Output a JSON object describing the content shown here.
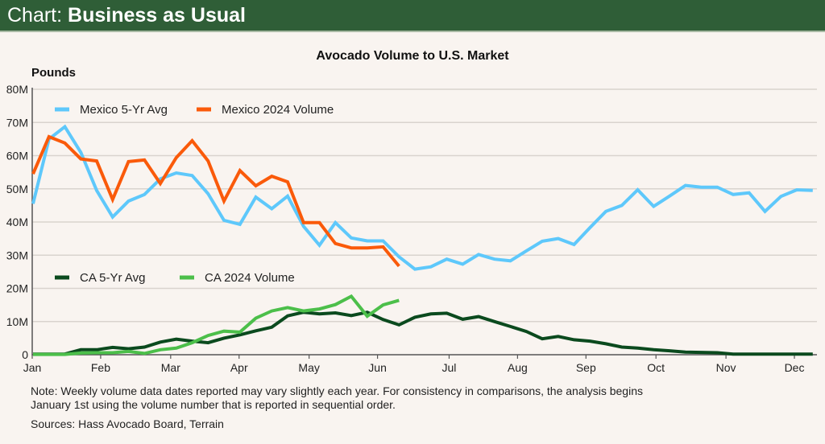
{
  "header": {
    "prefix": "Chart:",
    "title": "Business as Usual"
  },
  "note": "Note: Weekly volume data dates reported may vary slightly each year. For consistency in comparisons, the analysis begins January 1st using the volume number that is reported in sequential order.",
  "source": "Sources: Hass Avocado Board, Terrain",
  "colors": {
    "header_bg": "#2f5e37",
    "mexico_avg": "#5ec8fb",
    "mexico_2024": "#fa5a0a",
    "ca_avg": "#0b4a1e",
    "ca_2024": "#4cbf4a"
  },
  "chart_data": {
    "type": "line",
    "title": "Avocado Volume to U.S. Market",
    "ylabel": "Pounds",
    "xlabel": "",
    "ylim": [
      0,
      80
    ],
    "yticks": [
      0,
      10,
      20,
      30,
      40,
      50,
      60,
      70,
      80
    ],
    "ytick_labels": [
      "0",
      "10M",
      "20M",
      "30M",
      "40M",
      "50M",
      "60M",
      "70M",
      "80M"
    ],
    "x_unit": "week of year (0 = Jan 1)",
    "xlim": [
      0,
      50.5
    ],
    "month_labels": [
      "Jan",
      "Feb",
      "Mar",
      "Apr",
      "May",
      "Jun",
      "Jul",
      "Aug",
      "Sep",
      "Oct",
      "Nov",
      "Dec"
    ],
    "month_positions": [
      0,
      4.3,
      8.7,
      13.0,
      17.4,
      21.7,
      26.2,
      30.5,
      34.8,
      39.2,
      43.6,
      47.9
    ],
    "grid": true,
    "legend_placement": "top-left (Mexico) and middle-left (CA)",
    "series": [
      {
        "name": "Mexico 5-Yr Avg",
        "color": "#5ec8fb",
        "values": [
          45.5,
          65,
          68.7,
          61,
          49.5,
          41.5,
          46.3,
          48.3,
          53,
          54.8,
          54,
          48.5,
          40.5,
          39.3,
          47.5,
          44,
          47.8,
          38.7,
          33,
          39.8,
          35.2,
          34.3,
          34.3,
          29.5,
          25.8,
          26.5,
          28.8,
          27.3,
          30.2,
          28.8,
          28.3,
          31.3,
          34.2,
          35,
          33.2,
          38.3,
          43.2,
          45,
          49.7,
          44.7,
          47.8,
          51,
          50.5,
          50.5,
          48.3,
          48.8,
          43.2,
          47.7,
          49.7,
          49.5
        ]
      },
      {
        "name": "Mexico 2024 Volume",
        "color": "#fa5a0a",
        "values": [
          54.5,
          65.7,
          63.8,
          59,
          58.4,
          46.8,
          58.2,
          58.7,
          51.6,
          59.4,
          64.5,
          58.4,
          46.3,
          55.5,
          50.9,
          53.8,
          52.1,
          39.8,
          39.8,
          33.5,
          32.2,
          32.2,
          32.5,
          26.7
        ]
      },
      {
        "name": "CA 5-Yr Avg",
        "color": "#0b4a1e",
        "values": [
          0.2,
          0.2,
          0.2,
          1.5,
          1.5,
          2.2,
          1.8,
          2.3,
          3.8,
          4.7,
          4.1,
          3.6,
          5,
          6,
          7.2,
          8.3,
          11.7,
          12.8,
          12.3,
          12.6,
          11.8,
          12.8,
          10.6,
          9,
          11.3,
          12.3,
          12.5,
          10.7,
          11.5,
          10,
          8.5,
          7,
          4.8,
          5.5,
          4.5,
          4.1,
          3.3,
          2.3,
          2,
          1.5,
          1.2,
          0.8,
          0.7,
          0.6,
          0.2,
          0.2,
          0.2,
          0.2,
          0.2,
          0.2
        ]
      },
      {
        "name": "CA 2024 Volume",
        "color": "#4cbf4a",
        "values": [
          0.1,
          0.1,
          0.1,
          0.5,
          0.6,
          0.6,
          1,
          0.4,
          1.5,
          2,
          3.6,
          5.8,
          7.1,
          6.8,
          11,
          13.2,
          14.2,
          13.2,
          13.8,
          15.1,
          17.6,
          11.6,
          15,
          16.4
        ]
      }
    ]
  }
}
